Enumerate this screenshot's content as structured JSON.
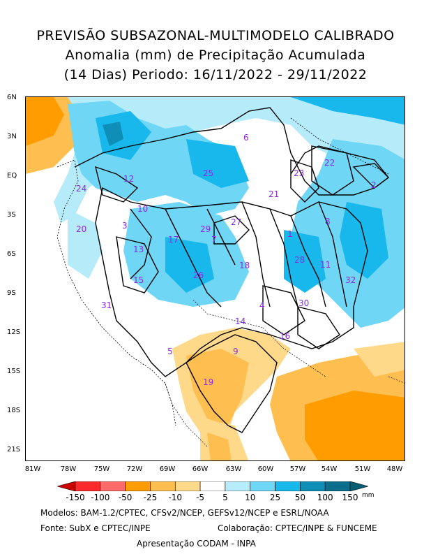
{
  "title": {
    "line1": "PREVISÃO SUBSAZONAL-MULTIMODELO CALIBRADO",
    "line2": "Anomalia (mm) de Precipitação Acumulada",
    "line3": "(14 Dias) Periodo: 16/11/2022 - 29/11/2022"
  },
  "axes": {
    "lat_ticks": [
      "6N",
      "3N",
      "EQ",
      "3S",
      "6S",
      "9S",
      "12S",
      "15S",
      "18S",
      "21S"
    ],
    "lon_ticks": [
      "81W",
      "78W",
      "75W",
      "72W",
      "69W",
      "66W",
      "63W",
      "60W",
      "57W",
      "54W",
      "51W",
      "48W"
    ]
  },
  "colorbar": {
    "labels": [
      "-150",
      "-100",
      "-50",
      "-25",
      "-10",
      "-5",
      "5",
      "10",
      "25",
      "50",
      "100",
      "150"
    ],
    "unit": "mm",
    "colors": [
      "#cc0000",
      "#ff2a2a",
      "#ff6a6a",
      "#ff9c00",
      "#ffbf50",
      "#ffd98a",
      "#ffffff",
      "#b6ecfa",
      "#6fd6f5",
      "#18b8ec",
      "#0f8fb7",
      "#0b6f8c",
      "#075e75"
    ]
  },
  "basins": [
    "1",
    "2",
    "3",
    "4",
    "5",
    "6",
    "7",
    "8",
    "9",
    "10",
    "11",
    "12",
    "13",
    "14",
    "15",
    "16",
    "17",
    "18",
    "19",
    "20",
    "21",
    "22",
    "23",
    "24",
    "25",
    "26",
    "27",
    "28",
    "29",
    "30",
    "31",
    "32"
  ],
  "footer": {
    "models": "Modelos: BAM-1.2/CPTEC, CFSv2/NCEP, GEFSv12/NCEP e ESRL/NOAA",
    "source": "Fonte: SubX e CPTEC/INPE",
    "collab": "Colaboração: CPTEC/INPE & FUNCEME",
    "presentation": "Apresentação CODAM - INPA"
  }
}
